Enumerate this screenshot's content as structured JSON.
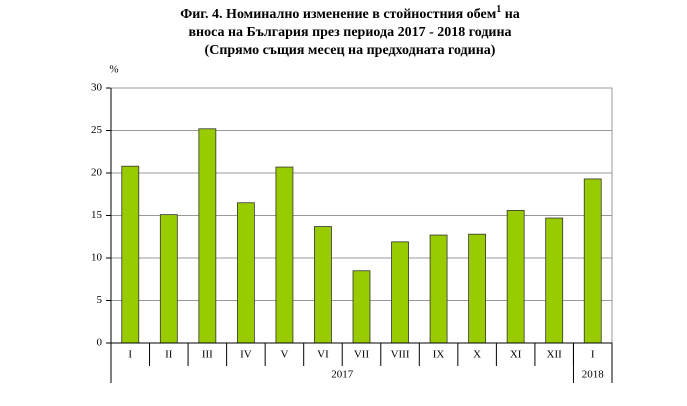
{
  "chart_data": {
    "type": "bar",
    "title": "Фиг. 4. Номинално изменение в стойностния обем",
    "title_footnote": "1",
    "title_end": " на",
    "title_line2": "вноса на България през периода 2017 - 2018 година",
    "subtitle": "(Спрямо същия месец на предходната година)",
    "y_label": "%",
    "categories": [
      "I",
      "II",
      "III",
      "IV",
      "V",
      "VI",
      "VII",
      "VIII",
      "IX",
      "X",
      "XI",
      "XII",
      "I"
    ],
    "values": [
      20.8,
      15.1,
      25.2,
      16.5,
      20.7,
      13.7,
      8.5,
      11.9,
      12.7,
      12.8,
      15.6,
      14.7,
      19.3
    ],
    "groups": [
      {
        "label": "2017",
        "span": 12
      },
      {
        "label": "2018",
        "span": 1
      }
    ],
    "color": "#99cc00",
    "ylim": [
      0,
      30
    ],
    "yticks": [
      0,
      5,
      10,
      15,
      20,
      25,
      30
    ],
    "grid": true
  }
}
